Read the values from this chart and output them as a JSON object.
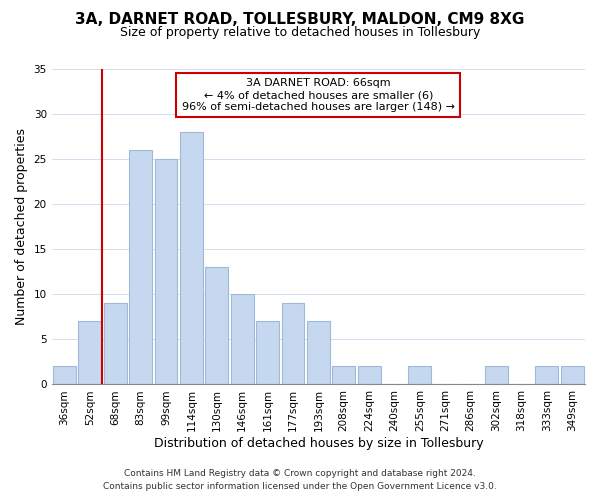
{
  "title": "3A, DARNET ROAD, TOLLESBURY, MALDON, CM9 8XG",
  "subtitle": "Size of property relative to detached houses in Tollesbury",
  "xlabel": "Distribution of detached houses by size in Tollesbury",
  "ylabel": "Number of detached properties",
  "bar_labels": [
    "36sqm",
    "52sqm",
    "68sqm",
    "83sqm",
    "99sqm",
    "114sqm",
    "130sqm",
    "146sqm",
    "161sqm",
    "177sqm",
    "193sqm",
    "208sqm",
    "224sqm",
    "240sqm",
    "255sqm",
    "271sqm",
    "286sqm",
    "302sqm",
    "318sqm",
    "333sqm",
    "349sqm"
  ],
  "bar_values": [
    2,
    7,
    9,
    26,
    25,
    28,
    13,
    10,
    7,
    9,
    7,
    2,
    2,
    0,
    2,
    0,
    0,
    2,
    0,
    2,
    2
  ],
  "bar_color": "#c5d8f0",
  "bar_edge_color": "#a0b8d8",
  "ylim": [
    0,
    35
  ],
  "yticks": [
    0,
    5,
    10,
    15,
    20,
    25,
    30,
    35
  ],
  "property_line_index": 2,
  "property_line_color": "#cc0000",
  "annotation_title": "3A DARNET ROAD: 66sqm",
  "annotation_line1": "← 4% of detached houses are smaller (6)",
  "annotation_line2": "96% of semi-detached houses are larger (148) →",
  "annotation_box_color": "#ffffff",
  "annotation_box_edge": "#cc0000",
  "footer1": "Contains HM Land Registry data © Crown copyright and database right 2024.",
  "footer2": "Contains public sector information licensed under the Open Government Licence v3.0.",
  "title_fontsize": 11,
  "subtitle_fontsize": 9,
  "ylabel_fontsize": 9,
  "xlabel_fontsize": 9,
  "annotation_fontsize": 8,
  "footer_fontsize": 6.5,
  "tick_fontsize": 7.5
}
